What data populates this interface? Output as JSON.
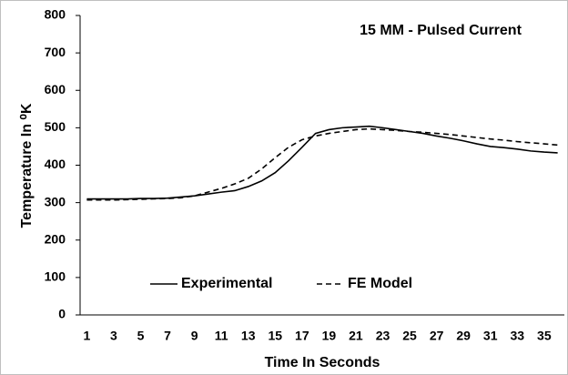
{
  "chart_data": {
    "type": "line",
    "title": "15 MM - Pulsed Current",
    "x_label": "Time In Seconds",
    "y_label": "Temperature In ⁰K",
    "categories": [
      1,
      null,
      3,
      null,
      5,
      null,
      7,
      null,
      9,
      null,
      11,
      null,
      13,
      null,
      15,
      null,
      17,
      null,
      19,
      null,
      21,
      null,
      23,
      null,
      25,
      null,
      27,
      null,
      29,
      null,
      31,
      null,
      33,
      null,
      35,
      null
    ],
    "series": [
      {
        "name": "Experimental",
        "color": "#000000",
        "dash": "solid",
        "values": [
          310,
          310,
          310,
          310,
          311,
          311,
          312,
          315,
          318,
          323,
          328,
          332,
          343,
          358,
          380,
          412,
          448,
          485,
          495,
          500,
          502,
          504,
          500,
          495,
          490,
          485,
          478,
          472,
          465,
          457,
          450,
          447,
          443,
          438,
          435,
          433
        ]
      },
      {
        "name": "FE Model",
        "color": "#000000",
        "dash": "dashed",
        "values": [
          307,
          307,
          307,
          308,
          309,
          310,
          311,
          313,
          318,
          328,
          338,
          350,
          365,
          390,
          420,
          448,
          468,
          478,
          485,
          490,
          495,
          497,
          495,
          493,
          490,
          488,
          485,
          482,
          478,
          474,
          470,
          467,
          463,
          460,
          457,
          454
        ]
      }
    ],
    "ylim": [
      0,
      800
    ],
    "yticks": [
      0,
      100,
      200,
      300,
      400,
      500,
      600,
      700,
      800
    ],
    "grid": false,
    "legend": "bottom"
  }
}
